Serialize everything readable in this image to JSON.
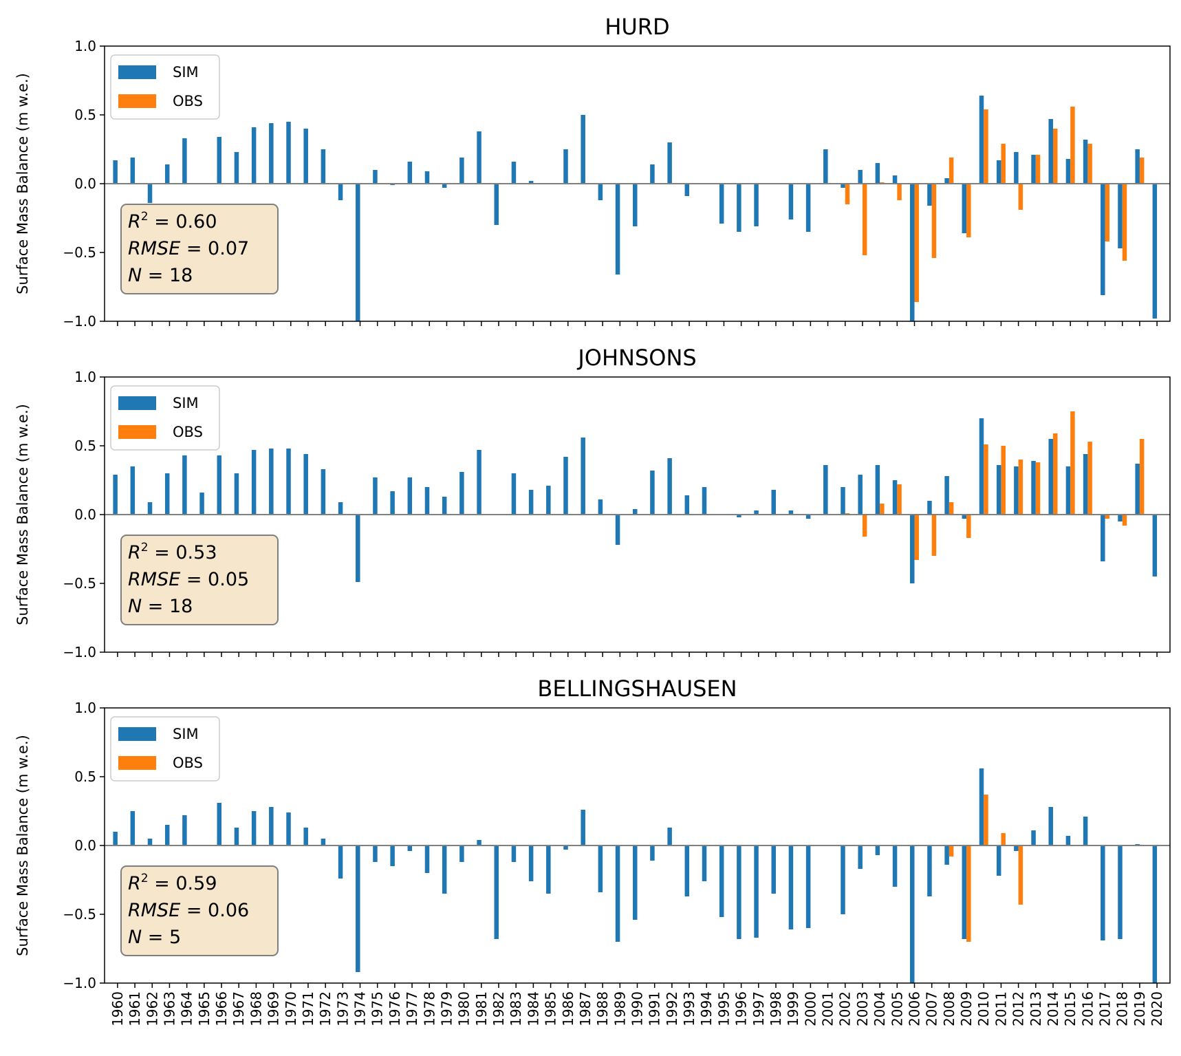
{
  "colors": {
    "sim": "#1f77b4",
    "obs": "#ff7f0e",
    "zero_line": "#808080",
    "stats_box": "#f5e6cc"
  },
  "years": [
    1960,
    1961,
    1962,
    1963,
    1964,
    1965,
    1966,
    1967,
    1968,
    1969,
    1970,
    1971,
    1972,
    1973,
    1974,
    1975,
    1976,
    1977,
    1978,
    1979,
    1980,
    1981,
    1982,
    1983,
    1984,
    1985,
    1986,
    1987,
    1988,
    1989,
    1990,
    1991,
    1992,
    1993,
    1994,
    1995,
    1996,
    1997,
    1998,
    1999,
    2000,
    2001,
    2002,
    2003,
    2004,
    2005,
    2006,
    2007,
    2008,
    2009,
    2010,
    2011,
    2012,
    2013,
    2014,
    2015,
    2016,
    2017,
    2018,
    2019,
    2020
  ],
  "chart_data": [
    {
      "type": "bar",
      "title": "HURD",
      "ylabel": "Surface Mass Balance (m w.e.)",
      "ylim": [
        -1.0,
        1.0
      ],
      "yticks": [
        "1.0",
        "0.5",
        "0.0",
        "−0.5",
        "−1.0"
      ],
      "ytick_values": [
        1.0,
        0.5,
        0.0,
        -0.5,
        -1.0
      ],
      "legend": [
        "SIM",
        "OBS"
      ],
      "stats": {
        "r2_label": "R",
        "r2_sup": "2",
        "r2_value": " = 0.60",
        "rmse_label": "RMSE",
        "rmse_value": " = 0.07",
        "n_label": "N",
        "n_value": " = 18"
      },
      "series": [
        {
          "name": "SIM",
          "values": [
            0.17,
            0.19,
            -0.14,
            0.14,
            0.33,
            0,
            0.34,
            0.23,
            0.41,
            0.44,
            0.45,
            0.4,
            0.25,
            -0.12,
            -1.0,
            0.1,
            -0.01,
            0.16,
            0.09,
            -0.03,
            0.19,
            0.38,
            -0.3,
            0.16,
            0.02,
            0,
            0.25,
            0.5,
            -0.12,
            -0.66,
            -0.31,
            0.14,
            0.3,
            -0.09,
            0,
            -0.29,
            -0.35,
            -0.31,
            0,
            -0.26,
            -0.35,
            0.25,
            -0.03,
            0.1,
            0.15,
            0.06,
            -1.0,
            -0.16,
            0.04,
            -0.36,
            0.64,
            0.17,
            0.23,
            0.21,
            0.47,
            0.18,
            0.32,
            -0.81,
            -0.47,
            0.25,
            -0.98
          ]
        },
        {
          "name": "OBS",
          "values": [
            null,
            null,
            null,
            null,
            null,
            null,
            null,
            null,
            null,
            null,
            null,
            null,
            null,
            null,
            null,
            null,
            null,
            null,
            null,
            null,
            null,
            null,
            null,
            null,
            null,
            null,
            null,
            null,
            null,
            null,
            null,
            null,
            null,
            null,
            null,
            null,
            null,
            null,
            null,
            null,
            null,
            null,
            -0.15,
            -0.52,
            0.01,
            -0.12,
            -0.86,
            -0.54,
            0.19,
            -0.39,
            0.54,
            0.29,
            -0.19,
            0.21,
            0.4,
            0.56,
            0.29,
            -0.42,
            -0.56,
            0.19,
            null
          ]
        }
      ]
    },
    {
      "type": "bar",
      "title": "JOHNSONS",
      "ylabel": "Surface Mass Balance (m w.e.)",
      "ylim": [
        -1.0,
        1.0
      ],
      "yticks": [
        "1.0",
        "0.5",
        "0.0",
        "−0.5",
        "−1.0"
      ],
      "ytick_values": [
        1.0,
        0.5,
        0.0,
        -0.5,
        -1.0
      ],
      "legend": [
        "SIM",
        "OBS"
      ],
      "stats": {
        "r2_label": "R",
        "r2_sup": "2",
        "r2_value": " = 0.53",
        "rmse_label": "RMSE",
        "rmse_value": " = 0.05",
        "n_label": "N",
        "n_value": " = 18"
      },
      "series": [
        {
          "name": "SIM",
          "values": [
            0.29,
            0.35,
            0.09,
            0.3,
            0.43,
            0.16,
            0.43,
            0.3,
            0.47,
            0.48,
            0.48,
            0.44,
            0.33,
            0.09,
            -0.49,
            0.27,
            0.17,
            0.27,
            0.2,
            0.13,
            0.31,
            0.47,
            0,
            0.3,
            0.18,
            0.21,
            0.42,
            0.56,
            0.11,
            -0.22,
            0.04,
            0.32,
            0.41,
            0.14,
            0.2,
            0,
            -0.02,
            0.03,
            0.18,
            0.03,
            -0.03,
            0.36,
            0.2,
            0.29,
            0.36,
            0.25,
            -0.5,
            0.1,
            0.28,
            -0.03,
            0.7,
            0.36,
            0.35,
            0.39,
            0.55,
            0.35,
            0.44,
            -0.34,
            -0.05,
            0.37,
            -0.45
          ]
        },
        {
          "name": "OBS",
          "values": [
            null,
            null,
            null,
            null,
            null,
            null,
            null,
            null,
            null,
            null,
            null,
            null,
            null,
            null,
            null,
            null,
            null,
            null,
            null,
            null,
            null,
            null,
            null,
            null,
            null,
            null,
            null,
            null,
            null,
            null,
            null,
            null,
            null,
            null,
            null,
            null,
            null,
            null,
            null,
            null,
            null,
            null,
            0.01,
            -0.16,
            0.08,
            0.22,
            -0.33,
            -0.3,
            0.09,
            -0.17,
            0.51,
            0.5,
            0.4,
            0.38,
            0.59,
            0.75,
            0.53,
            -0.03,
            -0.08,
            0.55,
            null
          ]
        }
      ]
    },
    {
      "type": "bar",
      "title": "BELLINGSHAUSEN",
      "ylabel": "Surface Mass Balance (m w.e.)",
      "ylim": [
        -1.0,
        1.0
      ],
      "yticks": [
        "1.0",
        "0.5",
        "0.0",
        "−0.5",
        "−1.0"
      ],
      "ytick_values": [
        1.0,
        0.5,
        0.0,
        -0.5,
        -1.0
      ],
      "legend": [
        "SIM",
        "OBS"
      ],
      "stats": {
        "r2_label": "R",
        "r2_sup": "2",
        "r2_value": " = 0.59",
        "rmse_label": "RMSE",
        "rmse_value": " = 0.06",
        "n_label": "N",
        "n_value": " = 5"
      },
      "series": [
        {
          "name": "SIM",
          "values": [
            0.1,
            0.25,
            0.05,
            0.15,
            0.22,
            0,
            0.31,
            0.13,
            0.25,
            0.28,
            0.24,
            0.13,
            0.05,
            -0.24,
            -0.92,
            -0.12,
            -0.15,
            -0.04,
            -0.2,
            -0.35,
            -0.12,
            0.04,
            -0.68,
            -0.12,
            -0.26,
            -0.35,
            -0.03,
            0.26,
            -0.34,
            -0.7,
            -0.54,
            -0.11,
            0.13,
            -0.37,
            -0.26,
            -0.52,
            -0.68,
            -0.67,
            -0.35,
            -0.61,
            -0.6,
            0,
            -0.5,
            -0.17,
            -0.07,
            -0.3,
            -1.0,
            -0.37,
            -0.14,
            -0.68,
            0.56,
            -0.22,
            -0.04,
            0.11,
            0.28,
            0.07,
            0.21,
            -0.69,
            -0.68,
            0.01,
            -1.0
          ]
        },
        {
          "name": "OBS",
          "values": [
            null,
            null,
            null,
            null,
            null,
            null,
            null,
            null,
            null,
            null,
            null,
            null,
            null,
            null,
            null,
            null,
            null,
            null,
            null,
            null,
            null,
            null,
            null,
            null,
            null,
            null,
            null,
            null,
            null,
            null,
            null,
            null,
            null,
            null,
            null,
            null,
            null,
            null,
            null,
            null,
            null,
            null,
            null,
            null,
            null,
            null,
            null,
            null,
            -0.08,
            -0.7,
            0.37,
            0.09,
            -0.43,
            null,
            null,
            null,
            null,
            null,
            null,
            null,
            null
          ]
        }
      ]
    }
  ]
}
